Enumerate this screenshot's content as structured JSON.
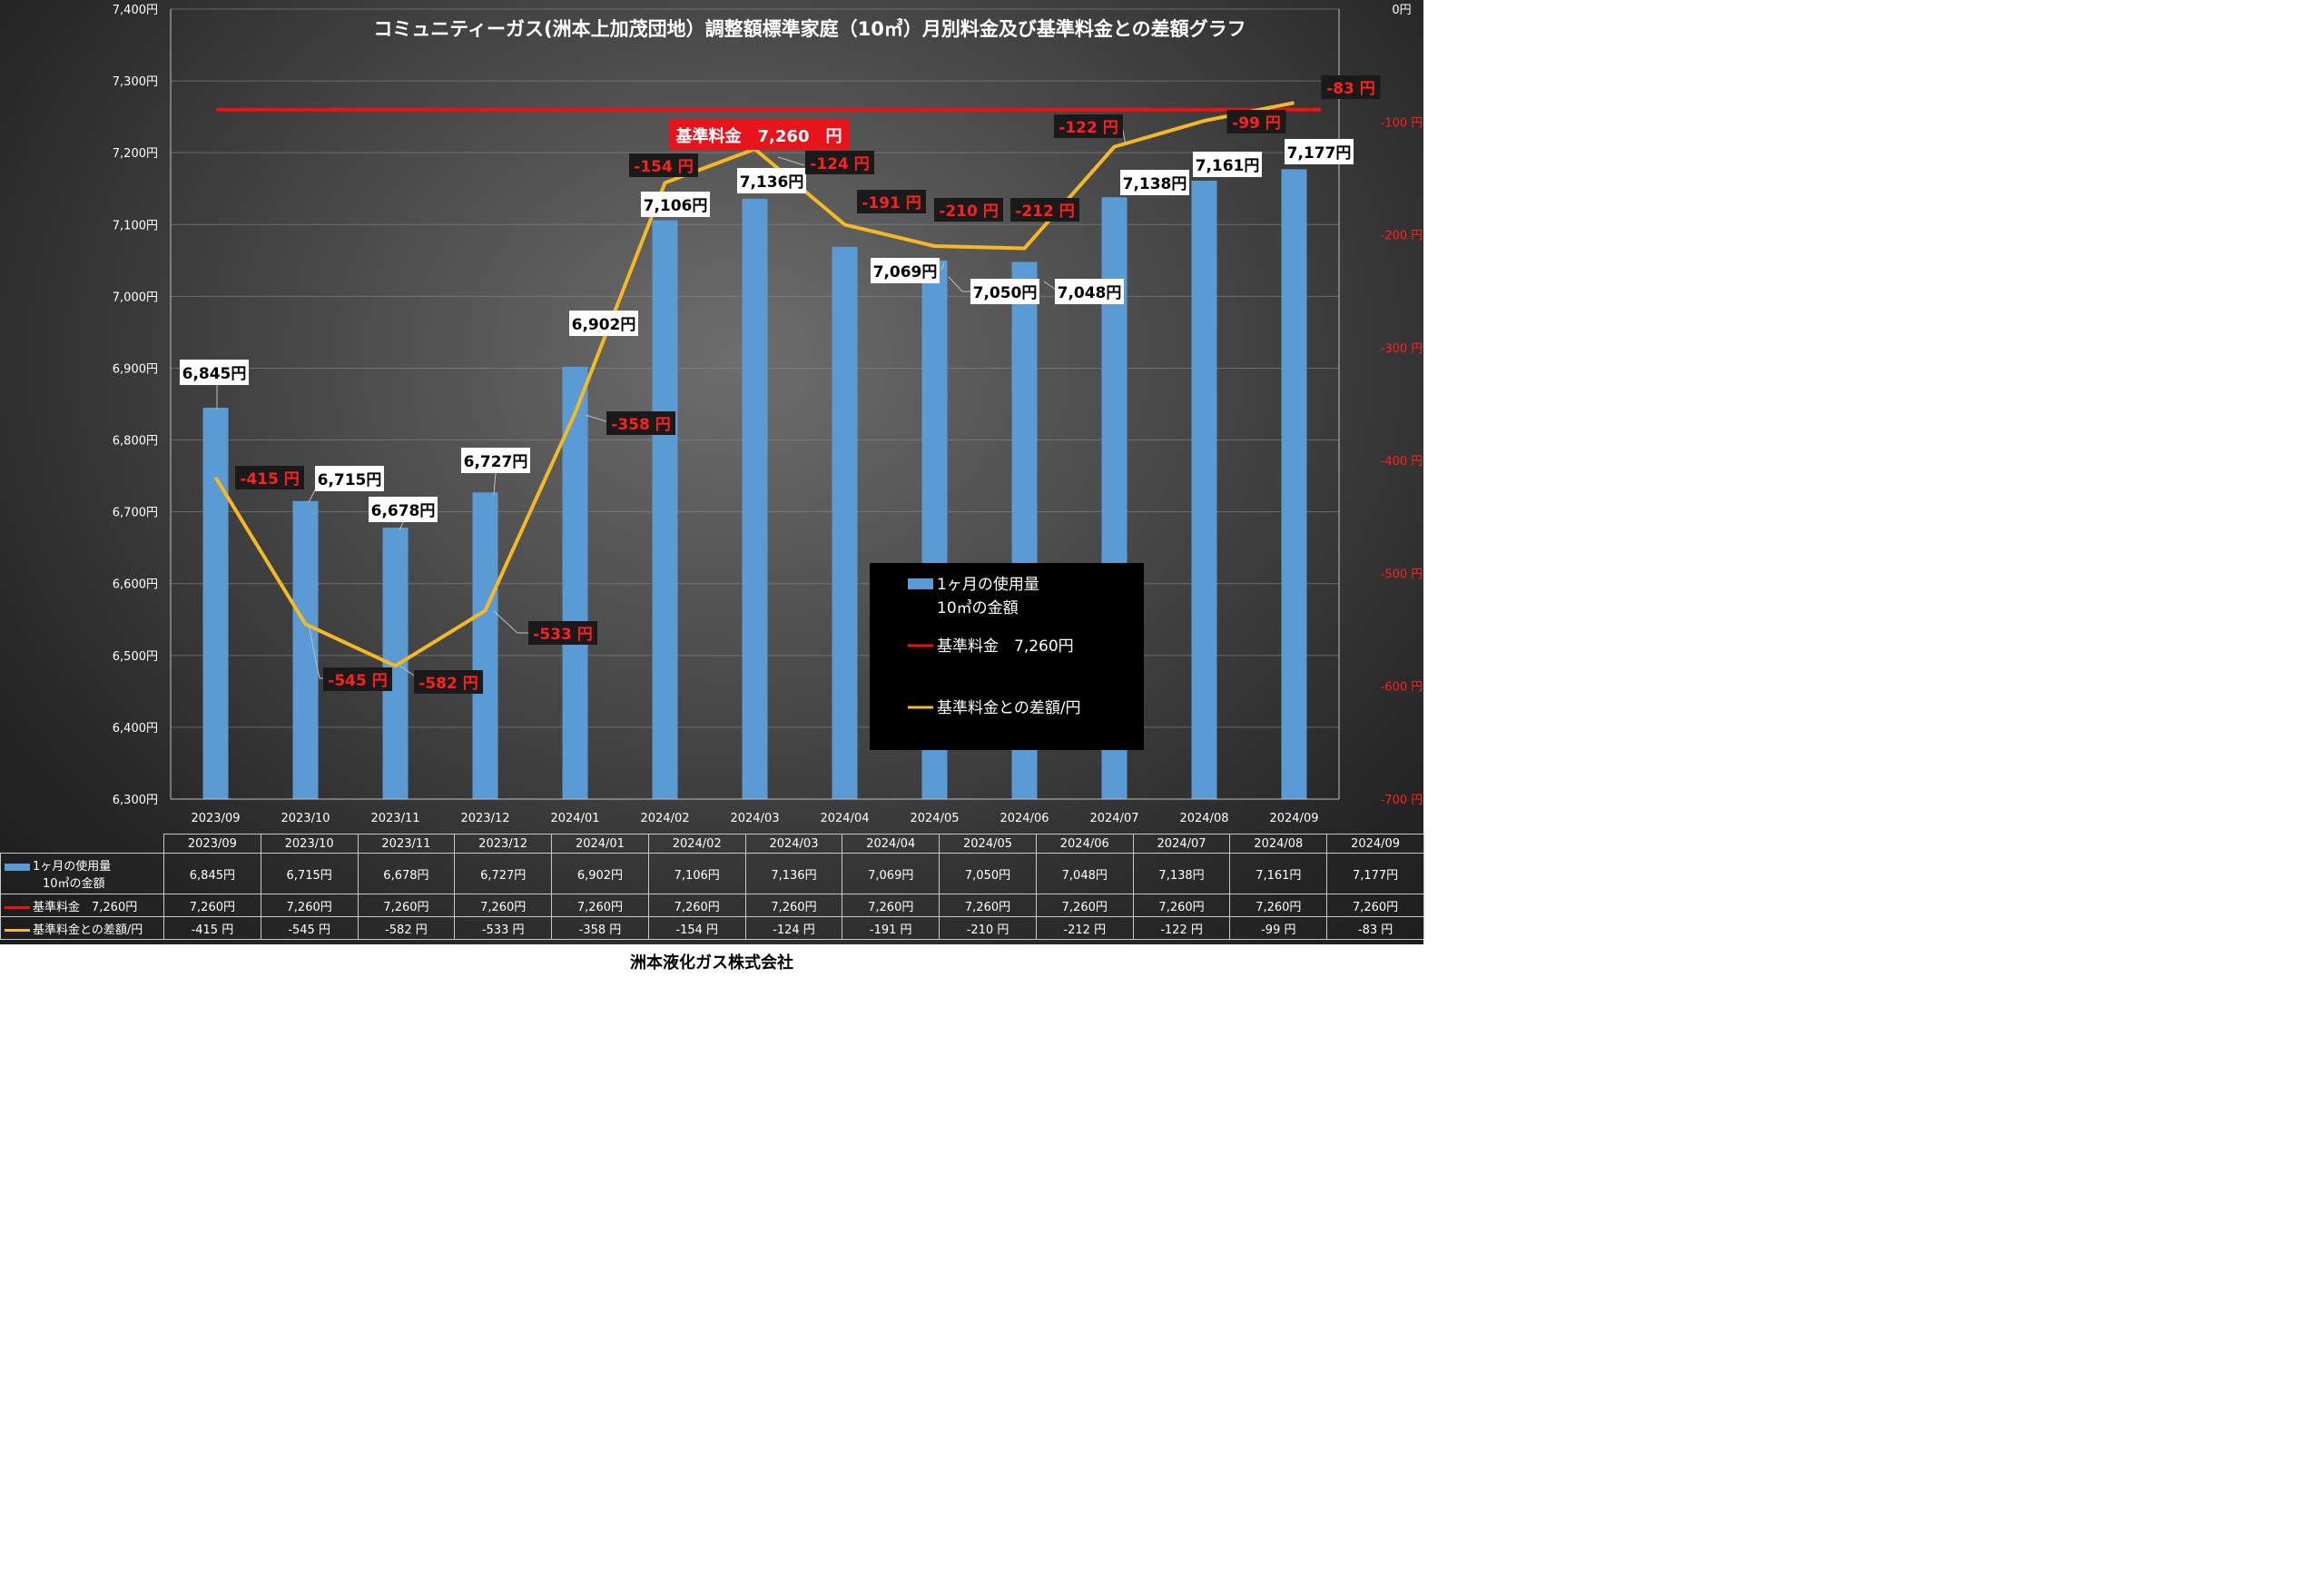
{
  "chart_data": {
    "type": "bar+line",
    "title": "コミュニティーガス(洲本上加茂団地）調整額標準家庭（10㎥）月別料金及び基準料金との差額グラフ",
    "categories": [
      "2023/09",
      "2023/10",
      "2023/11",
      "2023/12",
      "2024/01",
      "2024/02",
      "2024/03",
      "2024/04",
      "2024/05",
      "2024/06",
      "2024/07",
      "2024/08",
      "2024/09"
    ],
    "y_left": {
      "min": 6300,
      "max": 7400,
      "step": 100,
      "ticks": [
        "6,300円",
        "6,400円",
        "6,500円",
        "6,600円",
        "6,700円",
        "6,800円",
        "6,900円",
        "7,000円",
        "7,100円",
        "7,200円",
        "7,300円",
        "7,400円"
      ]
    },
    "y_right": {
      "min": -700,
      "max": 0,
      "step": 100,
      "ticks": [
        "-700 円",
        "-600 円",
        "-500 円",
        "-400 円",
        "-300 円",
        "-200 円",
        "-100 円",
        "0円"
      ]
    },
    "grid": true,
    "series": [
      {
        "name_line1": "1ヶ月の使用量",
        "name_line2": "10㎥の金額",
        "type": "bar",
        "axis": "left",
        "color": "#5b9bd5",
        "values": [
          6845,
          6715,
          6678,
          6727,
          6902,
          7106,
          7136,
          7069,
          7050,
          7048,
          7138,
          7161,
          7177
        ],
        "labels": [
          "6,845円",
          "6,715円",
          "6,678円",
          "6,727円",
          "6,902円",
          "7,106円",
          "7,136円",
          "7,069円",
          "7,050円",
          "7,048円",
          "7,138円",
          "7,161円",
          "7,177円"
        ],
        "table": [
          "6,845円",
          "6,715円",
          "6,678円",
          "6,727円",
          "6,902円",
          "7,106円",
          "7,136円",
          "7,069円",
          "7,050円",
          "7,048円",
          "7,138円",
          "7,161円",
          "7,177円"
        ]
      },
      {
        "name": "基準料金　7,260円",
        "type": "line",
        "axis": "left",
        "color": "#ee1111",
        "values": [
          7260,
          7260,
          7260,
          7260,
          7260,
          7260,
          7260,
          7260,
          7260,
          7260,
          7260,
          7260,
          7260
        ],
        "table": [
          "7,260円",
          "7,260円",
          "7,260円",
          "7,260円",
          "7,260円",
          "7,260円",
          "7,260円",
          "7,260円",
          "7,260円",
          "7,260円",
          "7,260円",
          "7,260円",
          "7,260円"
        ]
      },
      {
        "name": "基準料金との差額/円",
        "type": "line",
        "axis": "right",
        "color": "#f5b923",
        "values": [
          -415,
          -545,
          -582,
          -533,
          -358,
          -154,
          -124,
          -191,
          -210,
          -212,
          -122,
          -99,
          -83
        ],
        "labels": [
          "-415 円",
          "-545 円",
          "-582 円",
          "-533 円",
          "-358 円",
          "-154 円",
          "-124 円",
          "-191 円",
          "-210 円",
          "-212 円",
          "-122 円",
          "-99 円",
          "-83 円"
        ],
        "table": [
          "-415 円",
          "-545 円",
          "-582 円",
          "-533 円",
          "-358 円",
          "-154 円",
          "-124 円",
          "-191 円",
          "-210 円",
          "-212 円",
          "-122 円",
          "-99 円",
          "-83 円"
        ]
      }
    ],
    "annotation": "基準料金　7,260　円",
    "legend_position": "center-right"
  },
  "footer": "洲本液化ガス株式会社"
}
